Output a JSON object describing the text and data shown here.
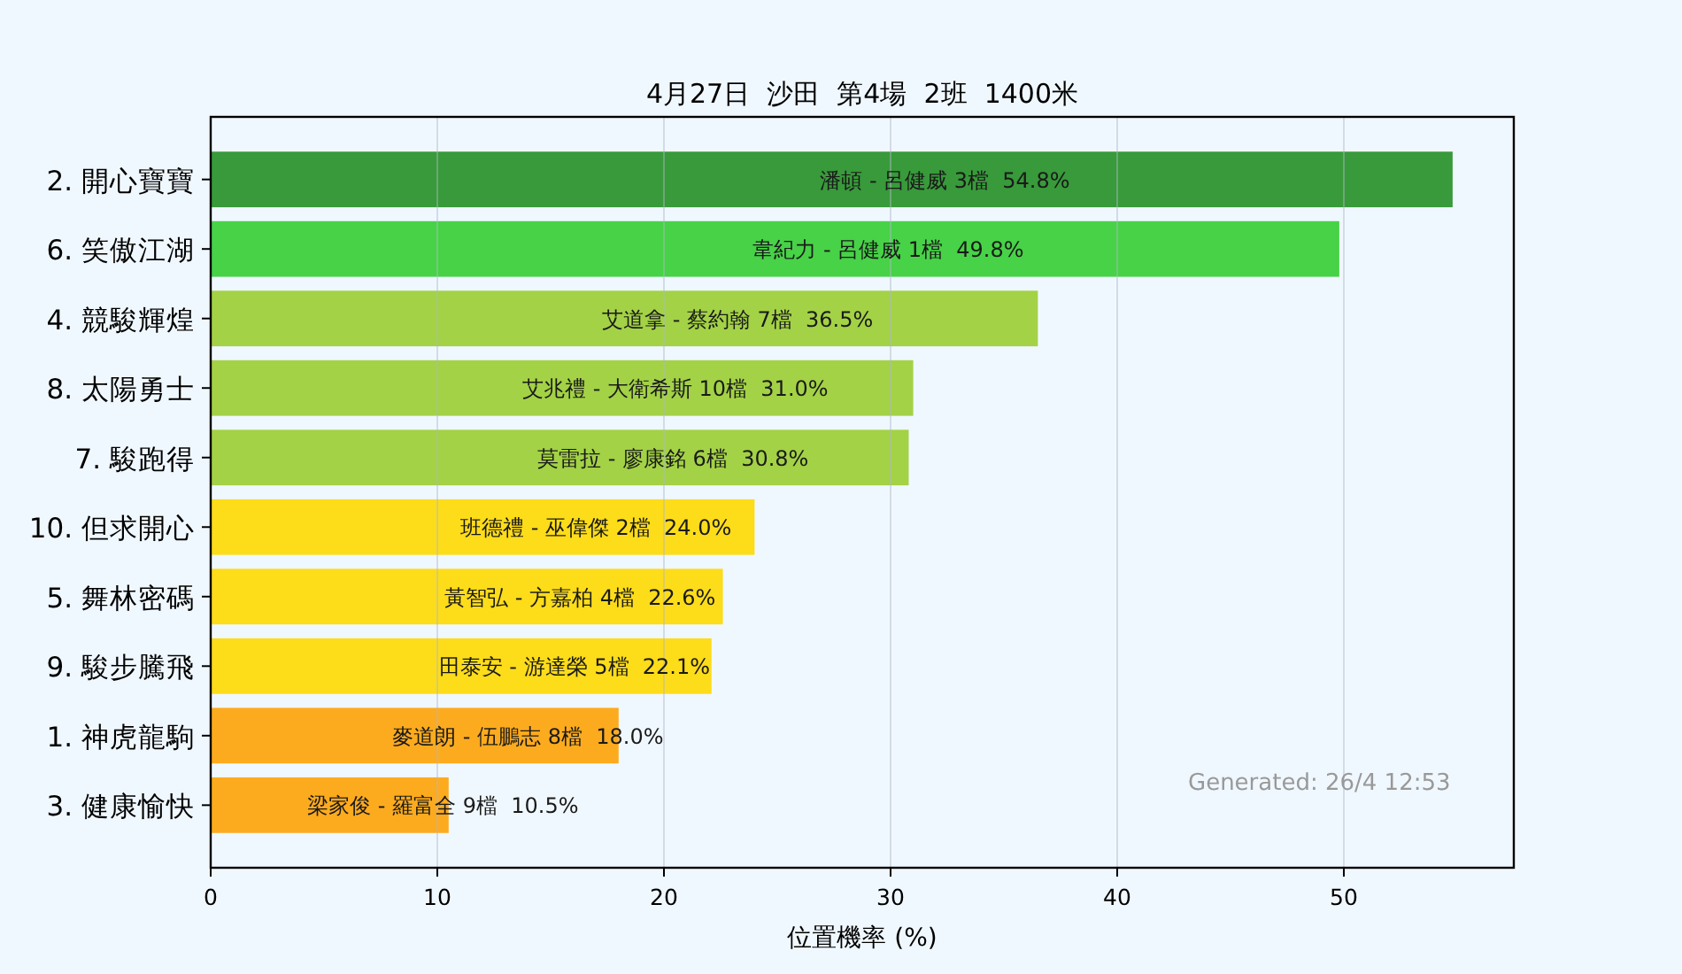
{
  "chart_data": {
    "type": "bar",
    "orientation": "horizontal",
    "title": "4月27日  沙田  第4場  2班  1400米",
    "xlabel": "位置機率 (%)",
    "categories": [
      "2. 開心寶寶",
      "6. 笑傲江湖",
      "4. 競駿輝煌",
      "8. 太陽勇士",
      "7. 駿跑得",
      "10. 但求開心",
      "5. 舞林密碼",
      "9. 駿步騰飛",
      "1. 神虎龍駒",
      "3. 健康愉快"
    ],
    "values": [
      54.8,
      49.8,
      36.5,
      31.0,
      30.8,
      24.0,
      22.6,
      22.1,
      18.0,
      10.5
    ],
    "colors": [
      "#389a3a",
      "#47d247",
      "#a3d246",
      "#a3d246",
      "#a3d246",
      "#fddc1a",
      "#fddc1a",
      "#fddc1a",
      "#fdab1e",
      "#fdab1e"
    ],
    "value_labels": [
      "潘頓 - 呂健威 3檔  54.8%",
      "韋紀力 - 呂健威 1檔  49.8%",
      "艾道拿 - 蔡約翰 7檔  36.5%",
      "艾兆禮 - 大衛希斯 10檔  31.0%",
      "莫雷拉 - 廖康銘 6檔  30.8%",
      "班德禮 - 巫偉傑 2檔  24.0%",
      "黃智弘 - 方嘉柏 4檔  22.6%",
      "田泰安 - 游達榮 5檔  22.1%",
      "麥道朗 - 伍鵬志 8檔  18.0%",
      "梁家俊 - 羅富全 9檔  10.5%"
    ],
    "xlim": [
      0,
      57.5
    ],
    "xticks": [
      0,
      10,
      20,
      30,
      40,
      50
    ],
    "grid": "x",
    "annotations": [
      "Generated: 26/4 12:53"
    ]
  }
}
